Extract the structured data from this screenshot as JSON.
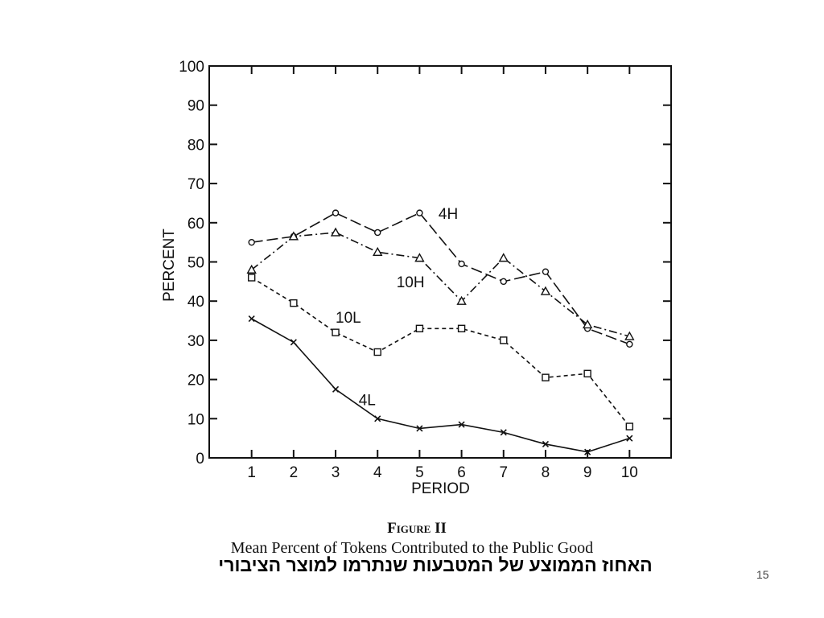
{
  "slide": {
    "figure_title": "Figure II",
    "figure_caption": "Mean Percent of Tokens Contributed to the Public Good",
    "hebrew_caption": "האחוז הממוצע של המטבעות שנתרמו למוצר הציבורי",
    "page_number": "15"
  },
  "chart_data": {
    "type": "line",
    "xlabel": "PERIOD",
    "ylabel": "PERCENT",
    "x": [
      1,
      2,
      3,
      4,
      5,
      6,
      7,
      8,
      9,
      10
    ],
    "xlim": [
      0,
      11
    ],
    "ylim": [
      0,
      100
    ],
    "yticks": [
      0,
      10,
      20,
      30,
      40,
      50,
      60,
      70,
      80,
      90,
      100
    ],
    "grid": false,
    "legend": "inline labels",
    "series": [
      {
        "name": "4H",
        "marker": "circle",
        "dash": "long-dash",
        "values": [
          55,
          56.5,
          62.5,
          57.5,
          62.5,
          49.5,
          45,
          47.5,
          33,
          29
        ]
      },
      {
        "name": "10H",
        "marker": "triangle",
        "dash": "dash-dot",
        "values": [
          48,
          56.5,
          57.5,
          52.5,
          51,
          40,
          51,
          42.5,
          34,
          31
        ]
      },
      {
        "name": "10L",
        "marker": "square",
        "dash": "short-dash",
        "values": [
          46,
          39.5,
          32,
          27,
          33,
          33,
          30,
          20.5,
          21.5,
          8
        ]
      },
      {
        "name": "4L",
        "marker": "x",
        "dash": "solid",
        "values": [
          35.5,
          29.5,
          17.5,
          10,
          7.5,
          8.5,
          6.5,
          3.5,
          1.5,
          5
        ]
      }
    ],
    "colors": {
      "ink": "#111111"
    }
  }
}
